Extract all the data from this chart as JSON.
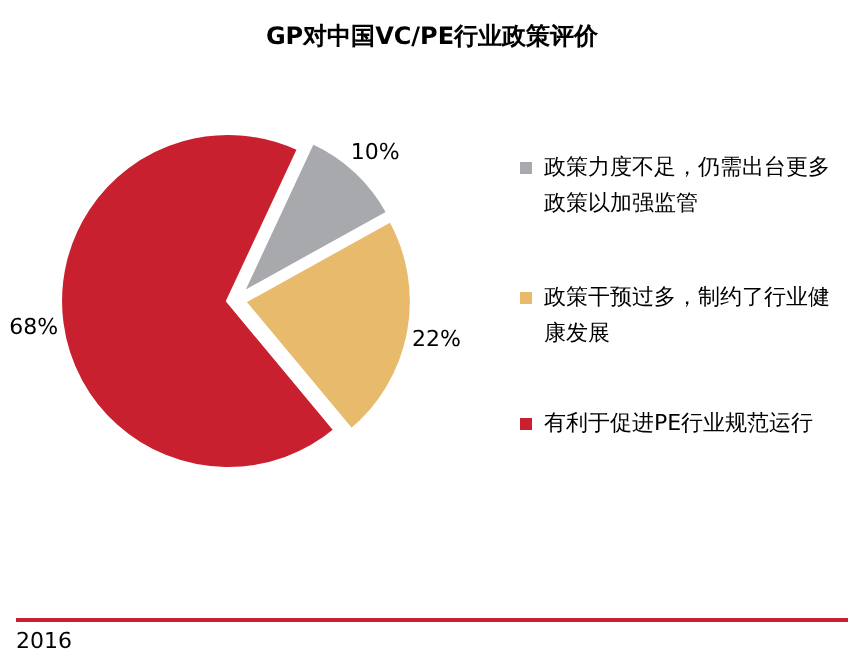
{
  "chart_data": {
    "type": "pie",
    "title": "GP对中国VC/PE行业政策评价",
    "categories": [
      "政策力度不足，仍需出台更多政策以加强监管",
      "政策干预过多，制约了行业健康发展",
      "有利于促进PE行业规范运行"
    ],
    "values": [
      10,
      22,
      68
    ],
    "colors": [
      "#a7a9ac",
      "#e8bb6c",
      "#c8202f"
    ],
    "value_labels": [
      "10%",
      "22%",
      "68%"
    ],
    "legend": "right",
    "annotations": [
      "2016"
    ]
  }
}
